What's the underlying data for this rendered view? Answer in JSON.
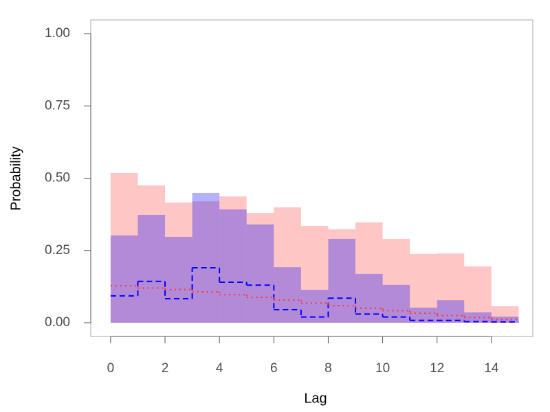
{
  "chart_data": {
    "type": "step",
    "xlabel": "Lag",
    "ylabel": "Probability",
    "bins": [
      0,
      1,
      2,
      3,
      4,
      5,
      6,
      7,
      8,
      9,
      10,
      11,
      12,
      13,
      14,
      15
    ],
    "bands": [
      {
        "color": "#ff0000",
        "opacity": 0.225,
        "lower": [
          0,
          0,
          0,
          0,
          0,
          0,
          0,
          0,
          0,
          0,
          0,
          0,
          0,
          0,
          0
        ],
        "upper": [
          0.518,
          0.475,
          0.416,
          0.42,
          0.437,
          0.38,
          0.399,
          0.335,
          0.323,
          0.347,
          0.29,
          0.238,
          0.24,
          0.195,
          0.057
        ]
      },
      {
        "color": "#0000ff",
        "opacity": 0.3,
        "lower": [
          0,
          0,
          0,
          0,
          0,
          0,
          0,
          0,
          0,
          0,
          0,
          0,
          0,
          0,
          0
        ],
        "upper": [
          0.302,
          0.373,
          0.297,
          0.449,
          0.392,
          0.34,
          0.192,
          0.114,
          0.29,
          0.169,
          0.131,
          0.052,
          0.078,
          0.036,
          0.021
        ]
      }
    ],
    "lines": [
      {
        "color": "#0000ff",
        "style": "dashed",
        "values": [
          0.093,
          0.143,
          0.083,
          0.19,
          0.14,
          0.13,
          0.045,
          0.02,
          0.085,
          0.03,
          0.02,
          0.008,
          0.008,
          0.004,
          0.003
        ]
      },
      {
        "color": "#ff3333",
        "style": "dotted",
        "values": [
          0.128,
          0.12,
          0.115,
          0.107,
          0.097,
          0.088,
          0.078,
          0.068,
          0.059,
          0.05,
          0.042,
          0.033,
          0.025,
          0.018,
          0.011
        ]
      }
    ],
    "xlim": [
      -0.73,
      15.52
    ],
    "ylim": [
      -0.0475,
      1.0475
    ],
    "xticks": [
      0,
      2,
      4,
      6,
      8,
      10,
      12,
      14
    ],
    "yticks": [
      {
        "value": 0,
        "label": "0.00"
      },
      {
        "value": 0.25,
        "label": "0.25"
      },
      {
        "value": 0.5,
        "label": "0.50"
      },
      {
        "value": 0.75,
        "label": "0.75"
      },
      {
        "value": 1,
        "label": "1.00"
      }
    ]
  }
}
